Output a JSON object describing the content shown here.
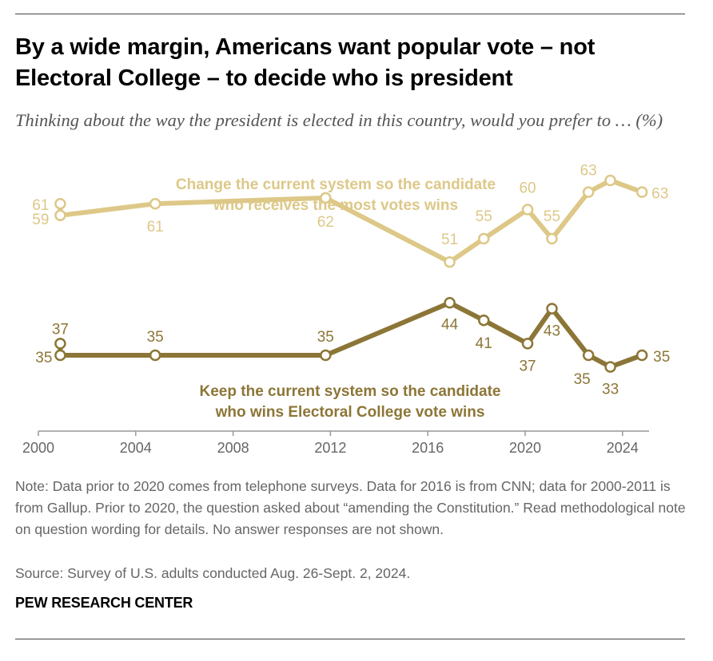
{
  "title": "By a wide margin, Americans want popular vote – not Electoral College – to decide who is president",
  "subtitle": "Thinking about the way the president is elected in this country, would you prefer to … (%)",
  "chart_data": {
    "type": "line",
    "xlim": [
      2000,
      2025
    ],
    "ylim": [
      25,
      70
    ],
    "x_ticks": [
      "2000",
      "2004",
      "2008",
      "2012",
      "2016",
      "2020",
      "2024"
    ],
    "grid": false,
    "series": [
      {
        "name": "Change the current system so the candidate who receives the most votes wins",
        "label_lines": [
          "Change the current system so the candidate",
          "who receives the most votes wins"
        ],
        "color": "#ddc888",
        "x": [
          2000.9,
          2000.9,
          2004.8,
          2011.8,
          2016.9,
          2018.3,
          2020.1,
          2021.1,
          2022.6,
          2023.5,
          2024.8
        ],
        "y": [
          61,
          59,
          61,
          62,
          51,
          55,
          60,
          55,
          63,
          65,
          63
        ],
        "labels": [
          "61",
          "59",
          "61",
          "62",
          "51",
          "55",
          "60",
          "55",
          "63",
          "65",
          "63"
        ]
      },
      {
        "name": "Keep the current system so the candidate who wins Electoral College vote wins",
        "label_lines": [
          "Keep the current system so the candidate",
          "who wins Electoral College vote wins"
        ],
        "color": "#8c7637",
        "x": [
          2000.9,
          2000.9,
          2004.8,
          2011.8,
          2016.9,
          2018.3,
          2020.1,
          2021.1,
          2022.6,
          2023.5,
          2024.8
        ],
        "y": [
          37,
          35,
          35,
          35,
          44,
          41,
          37,
          43,
          35,
          33,
          35
        ],
        "labels": [
          "37",
          "35",
          "35",
          "35",
          "44",
          "41",
          "37",
          "43",
          "35",
          "33",
          "35"
        ]
      }
    ]
  },
  "note": "Note: Data prior to 2020 comes from telephone surveys. Data for 2016 is from CNN; data for 2000-2011 is from Gallup. Prior to 2020, the question asked about “amending the Constitution.” Read methodological note on question wording for details. No answer responses are not shown.",
  "source": "Source: Survey of U.S. adults conducted Aug. 26-Sept. 2, 2024.",
  "brand": "PEW RESEARCH CENTER"
}
